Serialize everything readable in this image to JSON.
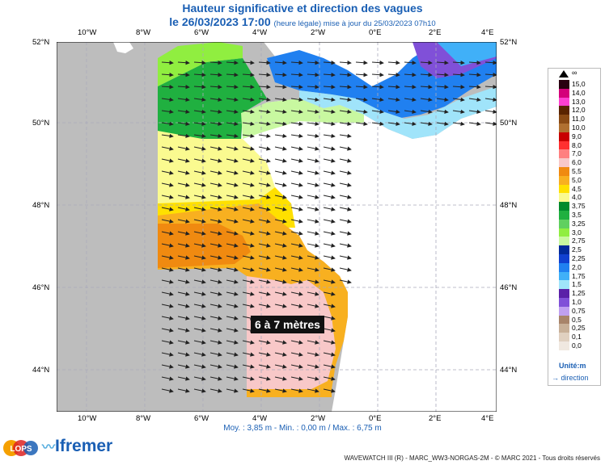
{
  "title": "Hauteur significative et direction des vagues",
  "subtitle_date": "le 26/03/2023 17:00",
  "subtitle_note": "(heure légale) mise à jour du 25/03/2023 07h10",
  "badge": "6 à 7 mètres",
  "stats": "Moy. : 3,85 m   -   Min. : 0,00 m / Max. : 6,75 m",
  "footer": "WAVEWATCH III (R) - MARC_WW3-NORGAS-2M - © MARC 2021 - Tous droits réservés",
  "lon_ticks": [
    "10°W",
    "8°W",
    "6°W",
    "4°W",
    "2°W",
    "0°E",
    "2°E",
    "4°E"
  ],
  "lat_ticks": [
    "52°N",
    "50°N",
    "48°N",
    "46°N",
    "44°N"
  ],
  "legend": {
    "unit": "Unité:m",
    "direction": "direction",
    "top_label": "∞",
    "items": [
      {
        "label": "15,0",
        "color": "#2a0010"
      },
      {
        "label": "14,0",
        "color": "#d4007a"
      },
      {
        "label": "13,0",
        "color": "#ff40d0"
      },
      {
        "label": "12,0",
        "color": "#5a2400"
      },
      {
        "label": "11,0",
        "color": "#8a4a14"
      },
      {
        "label": "10,0",
        "color": "#b07030"
      },
      {
        "label": "9,0",
        "color": "#c80000"
      },
      {
        "label": "8,0",
        "color": "#ff3030"
      },
      {
        "label": "7,0",
        "color": "#ff8080"
      },
      {
        "label": "6,0",
        "color": "#f8c8c8"
      },
      {
        "label": "5,5",
        "color": "#f08a10"
      },
      {
        "label": "5,0",
        "color": "#f8b020"
      },
      {
        "label": "4,5",
        "color": "#ffe000"
      },
      {
        "label": "4,0",
        "color": "#fafa90"
      },
      {
        "label": "3,75",
        "color": "#008a2c"
      },
      {
        "label": "3,5",
        "color": "#20b040"
      },
      {
        "label": "3,25",
        "color": "#60d060"
      },
      {
        "label": "3,0",
        "color": "#90ee40"
      },
      {
        "label": "2,75",
        "color": "#c8f8a0"
      },
      {
        "label": "2,5",
        "color": "#002a9a"
      },
      {
        "label": "2,25",
        "color": "#1040d0"
      },
      {
        "label": "2,0",
        "color": "#2080f0"
      },
      {
        "label": "1,75",
        "color": "#40b0f8"
      },
      {
        "label": "1,5",
        "color": "#a0e4fa"
      },
      {
        "label": "1,25",
        "color": "#5a20a8"
      },
      {
        "label": "1,0",
        "color": "#8050d8"
      },
      {
        "label": "0,75",
        "color": "#c0a0f0"
      },
      {
        "label": "0,5",
        "color": "#a8846a"
      },
      {
        "label": "0,25",
        "color": "#c8b098"
      },
      {
        "label": "0,1",
        "color": "#e0d0c0"
      },
      {
        "label": "0,0",
        "color": "#f0e8e0"
      }
    ]
  },
  "logos": {
    "left": "LOPS",
    "right": "Ifremer"
  }
}
